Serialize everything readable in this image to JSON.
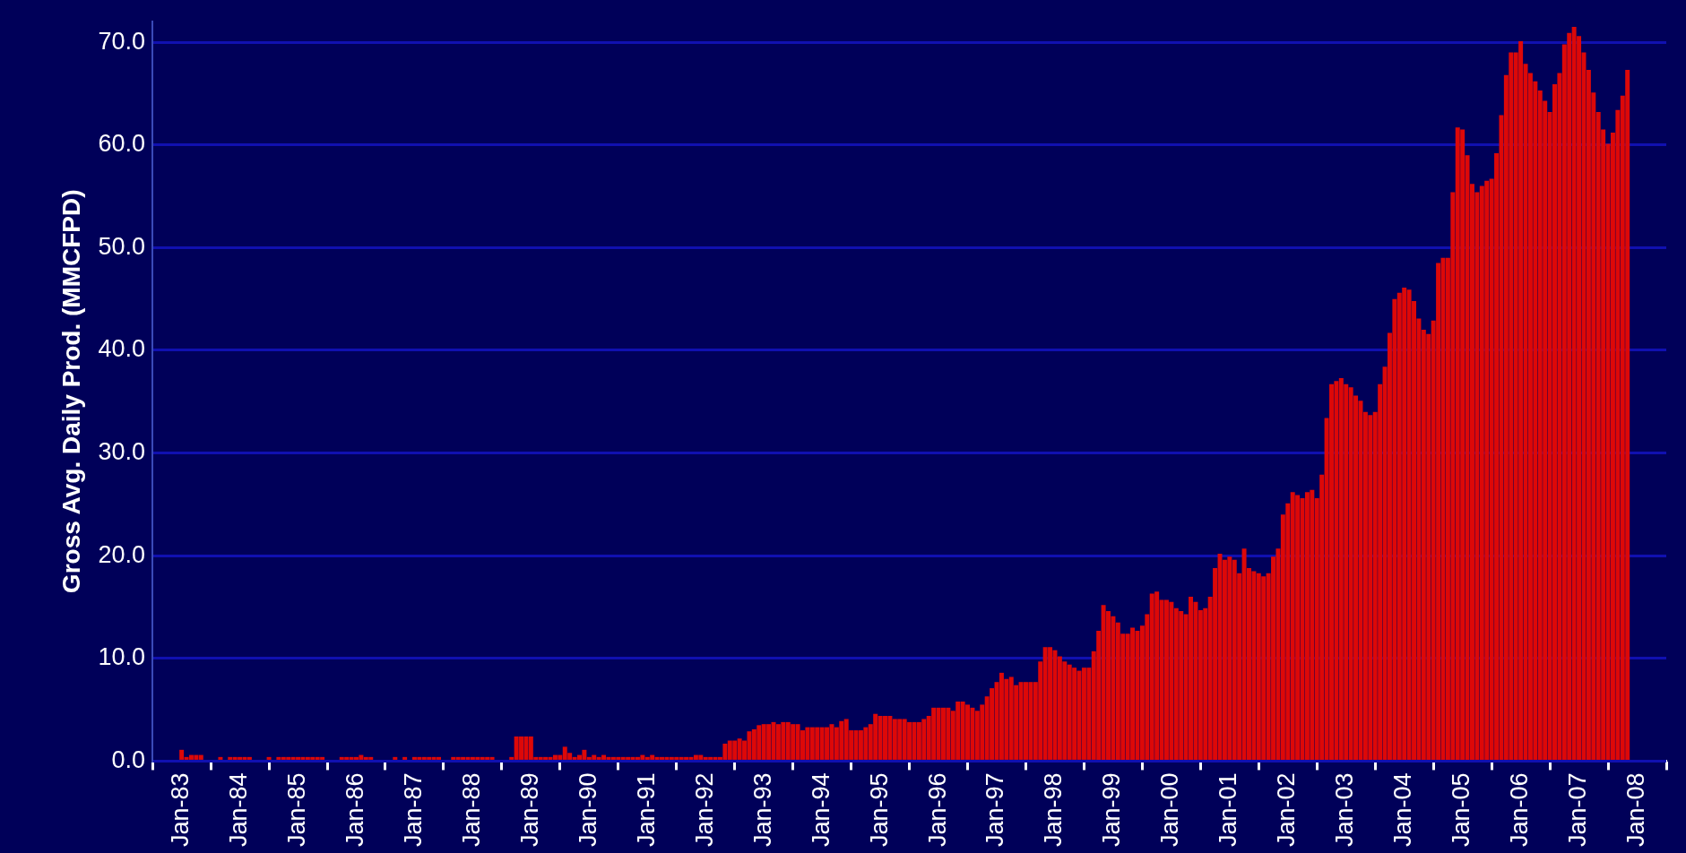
{
  "chart_data": {
    "type": "bar",
    "ylabel": "Gross Avg. Daily Prod. (MMCFPD)",
    "x": [
      "1983-01",
      "1983-02",
      "1983-03",
      "1983-04",
      "1983-05",
      "1983-06",
      "1983-07",
      "1983-08",
      "1983-09",
      "1983-10",
      "1983-11",
      "1983-12",
      "1984-01",
      "1984-02",
      "1984-03",
      "1984-04",
      "1984-05",
      "1984-06",
      "1984-07",
      "1984-08",
      "1984-09",
      "1984-10",
      "1984-11",
      "1984-12",
      "1985-01",
      "1985-02",
      "1985-03",
      "1985-04",
      "1985-05",
      "1985-06",
      "1985-07",
      "1985-08",
      "1985-09",
      "1985-10",
      "1985-11",
      "1985-12",
      "1986-01",
      "1986-02",
      "1986-03",
      "1986-04",
      "1986-05",
      "1986-06",
      "1986-07",
      "1986-08",
      "1986-09",
      "1986-10",
      "1986-11",
      "1986-12",
      "1987-01",
      "1987-02",
      "1987-03",
      "1987-04",
      "1987-05",
      "1987-06",
      "1987-07",
      "1987-08",
      "1987-09",
      "1987-10",
      "1987-11",
      "1987-12",
      "1988-01",
      "1988-02",
      "1988-03",
      "1988-04",
      "1988-05",
      "1988-06",
      "1988-07",
      "1988-08",
      "1988-09",
      "1988-10",
      "1988-11",
      "1988-12",
      "1989-01",
      "1989-02",
      "1989-03",
      "1989-04",
      "1989-05",
      "1989-06",
      "1989-07",
      "1989-08",
      "1989-09",
      "1989-10",
      "1989-11",
      "1989-12",
      "1990-01",
      "1990-02",
      "1990-03",
      "1990-04",
      "1990-05",
      "1990-06",
      "1990-07",
      "1990-08",
      "1990-09",
      "1990-10",
      "1990-11",
      "1990-12",
      "1991-01",
      "1991-02",
      "1991-03",
      "1991-04",
      "1991-05",
      "1991-06",
      "1991-07",
      "1991-08",
      "1991-09",
      "1991-10",
      "1991-11",
      "1991-12",
      "1992-01",
      "1992-02",
      "1992-03",
      "1992-04",
      "1992-05",
      "1992-06",
      "1992-07",
      "1992-08",
      "1992-09",
      "1992-10",
      "1992-11",
      "1992-12",
      "1993-01",
      "1993-02",
      "1993-03",
      "1993-04",
      "1993-05",
      "1993-06",
      "1993-07",
      "1993-08",
      "1993-09",
      "1993-10",
      "1993-11",
      "1993-12",
      "1994-01",
      "1994-02",
      "1994-03",
      "1994-04",
      "1994-05",
      "1994-06",
      "1994-07",
      "1994-08",
      "1994-09",
      "1994-10",
      "1994-11",
      "1994-12",
      "1995-01",
      "1995-02",
      "1995-03",
      "1995-04",
      "1995-05",
      "1995-06",
      "1995-07",
      "1995-08",
      "1995-09",
      "1995-10",
      "1995-11",
      "1995-12",
      "1996-01",
      "1996-02",
      "1996-03",
      "1996-04",
      "1996-05",
      "1996-06",
      "1996-07",
      "1996-08",
      "1996-09",
      "1996-10",
      "1996-11",
      "1996-12",
      "1997-01",
      "1997-02",
      "1997-03",
      "1997-04",
      "1997-05",
      "1997-06",
      "1997-07",
      "1997-08",
      "1997-09",
      "1997-10",
      "1997-11",
      "1997-12",
      "1998-01",
      "1998-02",
      "1998-03",
      "1998-04",
      "1998-05",
      "1998-06",
      "1998-07",
      "1998-08",
      "1998-09",
      "1998-10",
      "1998-11",
      "1998-12",
      "1999-01",
      "1999-02",
      "1999-03",
      "1999-04",
      "1999-05",
      "1999-06",
      "1999-07",
      "1999-08",
      "1999-09",
      "1999-10",
      "1999-11",
      "1999-12",
      "2000-01",
      "2000-02",
      "2000-03",
      "2000-04",
      "2000-05",
      "2000-06",
      "2000-07",
      "2000-08",
      "2000-09",
      "2000-10",
      "2000-11",
      "2000-12",
      "2001-01",
      "2001-02",
      "2001-03",
      "2001-04",
      "2001-05",
      "2001-06",
      "2001-07",
      "2001-08",
      "2001-09",
      "2001-10",
      "2001-11",
      "2001-12",
      "2002-01",
      "2002-02",
      "2002-03",
      "2002-04",
      "2002-05",
      "2002-06",
      "2002-07",
      "2002-08",
      "2002-09",
      "2002-10",
      "2002-11",
      "2002-12",
      "2003-01",
      "2003-02",
      "2003-03",
      "2003-04",
      "2003-05",
      "2003-06",
      "2003-07",
      "2003-08",
      "2003-09",
      "2003-10",
      "2003-11",
      "2003-12",
      "2004-01",
      "2004-02",
      "2004-03",
      "2004-04",
      "2004-05",
      "2004-06",
      "2004-07",
      "2004-08",
      "2004-09",
      "2004-10",
      "2004-11",
      "2004-12",
      "2005-01",
      "2005-02",
      "2005-03",
      "2005-04",
      "2005-05",
      "2005-06",
      "2005-07",
      "2005-08",
      "2005-09",
      "2005-10",
      "2005-11",
      "2005-12",
      "2006-01",
      "2006-02",
      "2006-03",
      "2006-04",
      "2006-05",
      "2006-06",
      "2006-07",
      "2006-08",
      "2006-09",
      "2006-10",
      "2006-11",
      "2006-12",
      "2007-01",
      "2007-02",
      "2007-03",
      "2007-04",
      "2007-05",
      "2007-06",
      "2007-07",
      "2007-08",
      "2007-09",
      "2007-10",
      "2007-11"
    ],
    "values": [
      1.1,
      0.4,
      0.6,
      0.6,
      0.6,
      null,
      null,
      null,
      0.4,
      null,
      0.4,
      0.4,
      0.4,
      0.4,
      0.4,
      null,
      null,
      null,
      0.4,
      null,
      0.4,
      0.4,
      0.4,
      0.4,
      0.4,
      0.4,
      0.4,
      0.4,
      0.4,
      0.4,
      null,
      null,
      null,
      0.4,
      0.4,
      0.4,
      0.4,
      0.6,
      0.4,
      0.4,
      null,
      null,
      null,
      null,
      0.4,
      null,
      0.4,
      null,
      0.4,
      0.4,
      0.4,
      0.4,
      0.4,
      0.4,
      null,
      null,
      0.4,
      0.4,
      0.4,
      0.4,
      0.4,
      0.4,
      0.4,
      0.4,
      0.4,
      null,
      null,
      null,
      0.4,
      2.4,
      2.4,
      2.4,
      2.4,
      0.4,
      0.4,
      0.4,
      0.4,
      0.6,
      0.6,
      1.4,
      0.8,
      0.4,
      0.6,
      1.1,
      0.4,
      0.6,
      0.4,
      0.6,
      0.4,
      0.4,
      0.4,
      0.4,
      0.4,
      0.4,
      0.4,
      0.6,
      0.4,
      0.6,
      0.4,
      0.4,
      0.4,
      0.4,
      0.4,
      0.4,
      0.4,
      0.4,
      0.6,
      0.6,
      0.4,
      0.4,
      0.4,
      0.4,
      1.7,
      2.0,
      2.0,
      2.2,
      2.0,
      2.9,
      3.1,
      3.5,
      3.6,
      3.6,
      3.8,
      3.6,
      3.8,
      3.8,
      3.6,
      3.6,
      3.0,
      3.3,
      3.3,
      3.3,
      3.3,
      3.3,
      3.6,
      3.3,
      3.9,
      4.1,
      3.0,
      3.0,
      3.0,
      3.3,
      3.6,
      4.6,
      4.4,
      4.4,
      4.4,
      4.1,
      4.1,
      4.1,
      3.8,
      3.8,
      3.8,
      4.1,
      4.4,
      5.2,
      5.2,
      5.2,
      5.2,
      4.9,
      5.8,
      5.8,
      5.5,
      5.2,
      4.9,
      5.5,
      6.3,
      7.1,
      7.7,
      8.6,
      8.0,
      8.2,
      7.4,
      7.7,
      7.7,
      7.7,
      7.7,
      9.7,
      11.1,
      11.1,
      10.8,
      10.2,
      9.7,
      9.4,
      9.1,
      8.8,
      9.1,
      9.1,
      10.7,
      12.7,
      15.2,
      14.6,
      14.1,
      13.5,
      12.4,
      12.4,
      13.0,
      12.7,
      13.2,
      14.3,
      16.3,
      16.5,
      15.7,
      15.7,
      15.5,
      14.9,
      14.6,
      14.3,
      16.0,
      15.5,
      14.7,
      14.9,
      16.0,
      18.8,
      20.2,
      19.6,
      19.9,
      19.6,
      18.3,
      20.7,
      18.8,
      18.5,
      18.3,
      18.0,
      18.3,
      19.9,
      20.7,
      24.0,
      25.1,
      26.2,
      25.9,
      25.6,
      26.2,
      26.4,
      25.6,
      27.9,
      33.4,
      36.7,
      37.0,
      37.3,
      36.7,
      36.4,
      35.6,
      35.1,
      34.0,
      33.7,
      34.0,
      36.7,
      38.4,
      41.7,
      45.0,
      45.6,
      46.1,
      45.9,
      44.8,
      43.1,
      42.0,
      41.6,
      42.9,
      48.5,
      49.0,
      49.0,
      55.4,
      61.7,
      61.5,
      59.0,
      56.2,
      55.4,
      56.0,
      56.5,
      56.7,
      59.2,
      62.9,
      66.8,
      69.0,
      69.0,
      70.1,
      67.9,
      67.0,
      66.2,
      65.3,
      64.3,
      63.2,
      65.9,
      67.0,
      69.8,
      70.9,
      71.5,
      70.6,
      69.0,
      67.3,
      65.1,
      63.2,
      61.5,
      60.1,
      61.2,
      63.4,
      64.8,
      67.3
    ],
    "color": "#dd0808",
    "xlim": [
      "1983-01",
      "2008-01"
    ],
    "xticks": [
      {
        "value": "1983-01",
        "label": "Jan-83"
      },
      {
        "value": "1984-01",
        "label": "Jan-84"
      },
      {
        "value": "1985-01",
        "label": "Jan-85"
      },
      {
        "value": "1986-01",
        "label": "Jan-86"
      },
      {
        "value": "1987-01",
        "label": "Jan-87"
      },
      {
        "value": "1988-01",
        "label": "Jan-88"
      },
      {
        "value": "1989-01",
        "label": "Jan-89"
      },
      {
        "value": "1990-01",
        "label": "Jan-90"
      },
      {
        "value": "1991-01",
        "label": "Jan-91"
      },
      {
        "value": "1992-01",
        "label": "Jan-92"
      },
      {
        "value": "1993-01",
        "label": "Jan-93"
      },
      {
        "value": "1994-01",
        "label": "Jan-94"
      },
      {
        "value": "1995-01",
        "label": "Jan-95"
      },
      {
        "value": "1996-01",
        "label": "Jan-96"
      },
      {
        "value": "1997-01",
        "label": "Jan-97"
      },
      {
        "value": "1998-01",
        "label": "Jan-98"
      },
      {
        "value": "1999-01",
        "label": "Jan-99"
      },
      {
        "value": "2000-01",
        "label": "Jan-00"
      },
      {
        "value": "2001-01",
        "label": "Jan-01"
      },
      {
        "value": "2002-01",
        "label": "Jan-02"
      },
      {
        "value": "2003-01",
        "label": "Jan-03"
      },
      {
        "value": "2004-01",
        "label": "Jan-04"
      },
      {
        "value": "2005-01",
        "label": "Jan-05"
      },
      {
        "value": "2006-01",
        "label": "Jan-06"
      },
      {
        "value": "2007-01",
        "label": "Jan-07"
      },
      {
        "value": "2008-01",
        "label": "Jan-08"
      }
    ],
    "ylim": [
      0,
      72
    ],
    "yticks": [
      {
        "value": 0,
        "label": "0.0"
      },
      {
        "value": 10,
        "label": "10.0"
      },
      {
        "value": 20,
        "label": "20.0"
      },
      {
        "value": 30,
        "label": "30.0"
      },
      {
        "value": 40,
        "label": "40.0"
      },
      {
        "value": 50,
        "label": "50.0"
      },
      {
        "value": 60,
        "label": "60.0"
      },
      {
        "value": 70,
        "label": "70.0"
      }
    ],
    "grid": "y",
    "legend": false
  }
}
